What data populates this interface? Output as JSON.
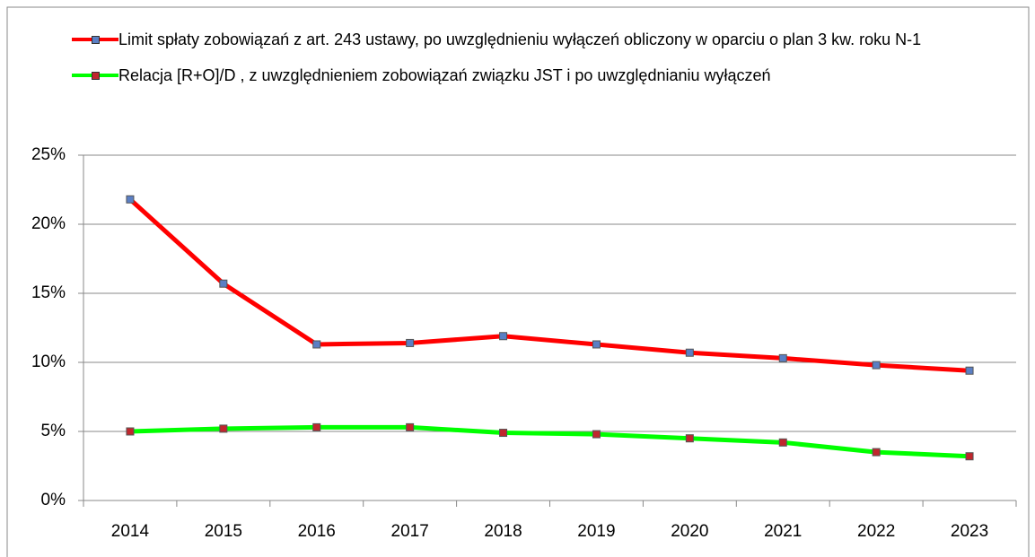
{
  "chart_data": {
    "type": "line",
    "categories": [
      "2014",
      "2015",
      "2016",
      "2017",
      "2018",
      "2019",
      "2020",
      "2021",
      "2022",
      "2023"
    ],
    "series": [
      {
        "name": "Limit spłaty zobowiązań z art. 243 ustawy, po uwzględnieniu wyłączeń obliczony w oparciu o plan 3 kw. roku N-1",
        "color": "#ff0000",
        "marker_color": "#5b7fc4",
        "values": [
          21.8,
          15.7,
          11.3,
          11.4,
          11.9,
          11.3,
          10.7,
          10.3,
          9.8,
          9.4
        ]
      },
      {
        "name": "Relacja [R+O]/D , z uwzględnieniem zobowiązań związku JST i po uwzględnianiu wyłączeń",
        "color": "#00ff00",
        "marker_color": "#c0272d",
        "values": [
          5.0,
          5.2,
          5.3,
          5.3,
          4.9,
          4.8,
          4.5,
          4.2,
          3.5,
          3.2
        ]
      }
    ],
    "ylim": [
      0,
      25
    ],
    "yticks": [
      {
        "value": 0,
        "label": "0%"
      },
      {
        "value": 5,
        "label": "5%"
      },
      {
        "value": 10,
        "label": "10%"
      },
      {
        "value": 15,
        "label": "15%"
      },
      {
        "value": 20,
        "label": "20%"
      },
      {
        "value": 25,
        "label": "25%"
      }
    ],
    "grid": true,
    "legend": "top"
  }
}
